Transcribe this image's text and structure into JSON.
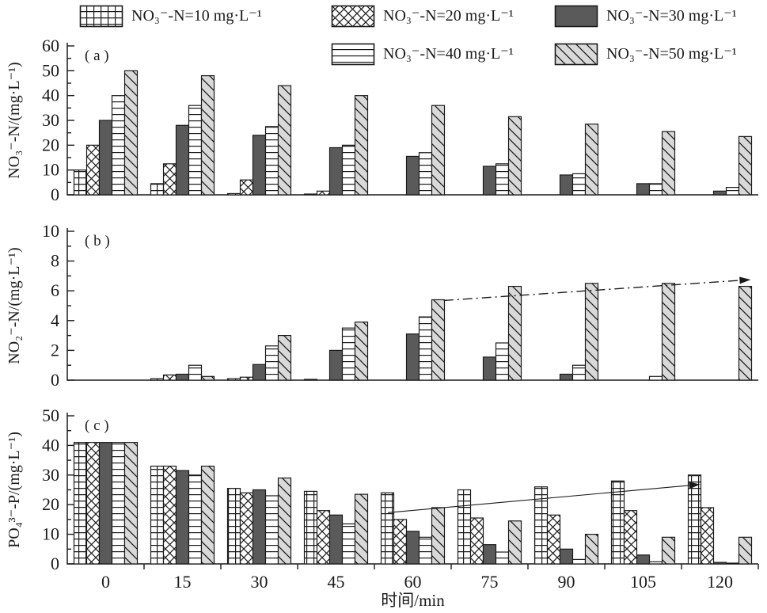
{
  "figure": {
    "xlabel": "时间/min",
    "legend_position": "top"
  },
  "colors": {
    "ink": "#1a1a1a",
    "solid_bar": "#5a5a5a",
    "diag_bg": "#d9d9d9",
    "background": "#ffffff"
  },
  "legend": [
    {
      "key": "n10",
      "label": "NO₃⁻-N=10 mg·L⁻¹",
      "pattern": "grid"
    },
    {
      "key": "n20",
      "label": "NO₃⁻-N=20 mg·L⁻¹",
      "pattern": "cross"
    },
    {
      "key": "n30",
      "label": "NO₃⁻-N=30 mg·L⁻¹",
      "pattern": "solid"
    },
    {
      "key": "n40",
      "label": "NO₃⁻-N=40 mg·L⁻¹",
      "pattern": "horiz"
    },
    {
      "key": "n50",
      "label": "NO₃⁻-N=50 mg·L⁻¹",
      "pattern": "diag"
    }
  ],
  "chart_data": [
    {
      "type": "bar",
      "panel_label": "( a )",
      "ylabel": "NO₃⁻-N/(mg·L⁻¹)",
      "xlabel": "",
      "ylim": [
        0,
        60
      ],
      "ytick_major": 10,
      "ytick_minor": 5,
      "grid": false,
      "show_x_ticklabels": false,
      "categories": [
        0,
        15,
        30,
        45,
        60,
        75,
        90,
        105,
        120
      ],
      "series": [
        {
          "key": "n10",
          "name": "NO₃⁻-N=10 mg·L⁻¹",
          "values": [
            10,
            4.5,
            0.5,
            0.2,
            0,
            0,
            0,
            0,
            0
          ]
        },
        {
          "key": "n20",
          "name": "NO₃⁻-N=20 mg·L⁻¹",
          "values": [
            20,
            12.5,
            6,
            1.5,
            0,
            0,
            0,
            0,
            0
          ]
        },
        {
          "key": "n30",
          "name": "NO₃⁻-N=30 mg·L⁻¹",
          "values": [
            30,
            28,
            24,
            19,
            15.5,
            11.5,
            8,
            4.5,
            1.5
          ]
        },
        {
          "key": "n40",
          "name": "NO₃⁻-N=40 mg·L⁻¹",
          "values": [
            40,
            36,
            27.5,
            20,
            17,
            12.5,
            8.5,
            4.5,
            3
          ]
        },
        {
          "key": "n50",
          "name": "NO₃⁻-N=50 mg·L⁻¹",
          "values": [
            50,
            48,
            44,
            40,
            36,
            31.5,
            28.5,
            25.5,
            23.5
          ]
        }
      ],
      "annotation": null
    },
    {
      "type": "bar",
      "panel_label": "( b )",
      "ylabel": "NO₂⁻-N/(mg·L⁻¹)",
      "xlabel": "",
      "ylim": [
        0,
        10
      ],
      "ytick_major": 2,
      "ytick_minor": 1,
      "grid": false,
      "show_x_ticklabels": false,
      "categories": [
        0,
        15,
        30,
        45,
        60,
        75,
        90,
        105,
        120
      ],
      "series": [
        {
          "key": "n10",
          "name": "NO₃⁻-N=10 mg·L⁻¹",
          "values": [
            0,
            0.1,
            0.1,
            0.05,
            0,
            0,
            0,
            0,
            0
          ]
        },
        {
          "key": "n20",
          "name": "NO₃⁻-N=20 mg·L⁻¹",
          "values": [
            0,
            0.35,
            0.2,
            0,
            0,
            0,
            0,
            0,
            0
          ]
        },
        {
          "key": "n30",
          "name": "NO₃⁻-N=30 mg·L⁻¹",
          "values": [
            0,
            0.4,
            1.05,
            2.0,
            3.1,
            1.55,
            0.4,
            0,
            0
          ]
        },
        {
          "key": "n40",
          "name": "NO₃⁻-N=40 mg·L⁻¹",
          "values": [
            0,
            1.0,
            2.3,
            3.5,
            4.25,
            2.5,
            1.0,
            0.25,
            0
          ]
        },
        {
          "key": "n50",
          "name": "NO₃⁻-N=50 mg·L⁻¹",
          "values": [
            0,
            0.25,
            3.0,
            3.9,
            5.4,
            6.3,
            6.5,
            6.5,
            6.3
          ]
        }
      ],
      "annotation": {
        "style": "dashdot",
        "x1n": 0.545,
        "y1": 5.35,
        "x2n": 0.973,
        "y2": 6.7
      }
    },
    {
      "type": "bar",
      "panel_label": "( c )",
      "ylabel": "PO₄³⁻-P/(mg·L⁻¹)",
      "xlabel": "时间/min",
      "ylim": [
        0,
        50
      ],
      "ytick_major": 10,
      "ytick_minor": 5,
      "grid": false,
      "show_x_ticklabels": true,
      "categories": [
        0,
        15,
        30,
        45,
        60,
        75,
        90,
        105,
        120
      ],
      "series": [
        {
          "key": "n10",
          "name": "NO₃⁻-N=10 mg·L⁻¹",
          "values": [
            41,
            33,
            25.5,
            24.5,
            24,
            25,
            26,
            28,
            30
          ]
        },
        {
          "key": "n20",
          "name": "NO₃⁻-N=20 mg·L⁻¹",
          "values": [
            41,
            33,
            24,
            18,
            15,
            15.5,
            16.5,
            18,
            19
          ]
        },
        {
          "key": "n30",
          "name": "NO₃⁻-N=30 mg·L⁻¹",
          "values": [
            41,
            31.5,
            25,
            16.5,
            11,
            6.5,
            5,
            3,
            0.5
          ]
        },
        {
          "key": "n40",
          "name": "NO₃⁻-N=40 mg·L⁻¹",
          "values": [
            41,
            30,
            23,
            13.5,
            9,
            4,
            1.5,
            0.7,
            0.2
          ]
        },
        {
          "key": "n50",
          "name": "NO₃⁻-N=50 mg·L⁻¹",
          "values": [
            41,
            33,
            29,
            23.5,
            19,
            14.5,
            10,
            9,
            9
          ]
        }
      ],
      "annotation": {
        "style": "solid",
        "x1n": 0.464,
        "y1": 17.3,
        "x2n": 0.9,
        "y2": 26.5
      }
    }
  ]
}
